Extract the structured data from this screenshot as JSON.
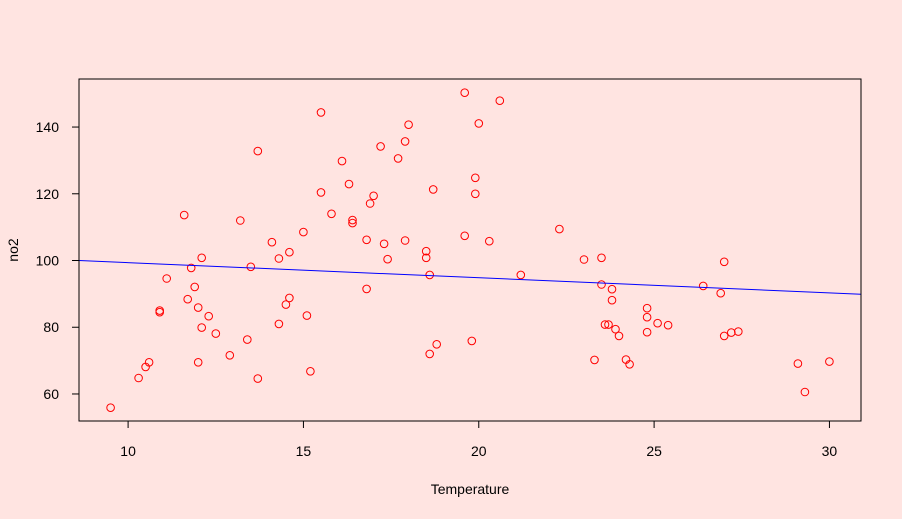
{
  "chart_data": {
    "type": "scatter",
    "title": "",
    "xlabel": "Temperature",
    "ylabel": "no2",
    "xlim": [
      8.6,
      30.9
    ],
    "ylim": [
      51.9,
      154.4
    ],
    "x_ticks": [
      10,
      15,
      20,
      25,
      30
    ],
    "y_ticks": [
      60,
      80,
      100,
      120,
      140
    ],
    "grid": false,
    "legend": "none",
    "colors": {
      "background": "#ffe4e1",
      "points": "#ff0000",
      "regression_line": "#0000ff",
      "axes": "#000000"
    },
    "series": [
      {
        "marker": "open-circle",
        "points": [
          [
            9.5,
            55.9
          ],
          [
            10.3,
            64.8
          ],
          [
            10.5,
            68.1
          ],
          [
            10.6,
            69.5
          ],
          [
            10.9,
            85.0
          ],
          [
            10.9,
            84.5
          ],
          [
            11.1,
            94.6
          ],
          [
            11.6,
            113.6
          ],
          [
            11.7,
            88.4
          ],
          [
            11.8,
            97.8
          ],
          [
            11.9,
            92.1
          ],
          [
            12.0,
            69.5
          ],
          [
            12.0,
            85.9
          ],
          [
            12.1,
            100.8
          ],
          [
            12.1,
            79.9
          ],
          [
            12.3,
            83.3
          ],
          [
            12.5,
            78.1
          ],
          [
            12.9,
            71.6
          ],
          [
            13.2,
            112.0
          ],
          [
            13.4,
            76.3
          ],
          [
            13.5,
            98.1
          ],
          [
            13.7,
            132.8
          ],
          [
            13.7,
            64.6
          ],
          [
            14.1,
            105.5
          ],
          [
            14.3,
            81.0
          ],
          [
            14.3,
            100.6
          ],
          [
            14.5,
            86.8
          ],
          [
            14.6,
            88.8
          ],
          [
            14.6,
            102.5
          ],
          [
            15.0,
            108.5
          ],
          [
            15.1,
            83.5
          ],
          [
            15.2,
            66.8
          ],
          [
            15.5,
            144.4
          ],
          [
            15.5,
            120.4
          ],
          [
            15.8,
            114.0
          ],
          [
            16.1,
            129.8
          ],
          [
            16.3,
            122.9
          ],
          [
            16.4,
            111.2
          ],
          [
            16.4,
            112.1
          ],
          [
            16.8,
            106.2
          ],
          [
            16.8,
            91.5
          ],
          [
            16.9,
            117.1
          ],
          [
            17.0,
            119.4
          ],
          [
            17.2,
            134.2
          ],
          [
            17.3,
            105.0
          ],
          [
            17.4,
            100.4
          ],
          [
            17.7,
            130.6
          ],
          [
            17.9,
            106.0
          ],
          [
            17.9,
            135.7
          ],
          [
            18.0,
            140.7
          ],
          [
            18.5,
            102.8
          ],
          [
            18.5,
            100.8
          ],
          [
            18.6,
            72.0
          ],
          [
            18.6,
            95.7
          ],
          [
            18.7,
            121.3
          ],
          [
            18.8,
            74.9
          ],
          [
            19.6,
            150.3
          ],
          [
            19.6,
            107.4
          ],
          [
            19.8,
            75.9
          ],
          [
            19.9,
            120.0
          ],
          [
            19.9,
            124.8
          ],
          [
            20.0,
            141.1
          ],
          [
            20.3,
            105.8
          ],
          [
            20.6,
            147.9
          ],
          [
            21.2,
            95.7
          ],
          [
            22.3,
            109.4
          ],
          [
            23.0,
            100.3
          ],
          [
            23.3,
            70.2
          ],
          [
            23.5,
            100.8
          ],
          [
            23.5,
            92.8
          ],
          [
            23.6,
            80.8
          ],
          [
            23.7,
            80.8
          ],
          [
            23.8,
            91.4
          ],
          [
            23.8,
            88.1
          ],
          [
            23.9,
            79.4
          ],
          [
            24.0,
            77.4
          ],
          [
            24.2,
            70.3
          ],
          [
            24.3,
            68.9
          ],
          [
            24.8,
            85.7
          ],
          [
            24.8,
            83.0
          ],
          [
            24.8,
            78.5
          ],
          [
            25.1,
            81.2
          ],
          [
            25.4,
            80.6
          ],
          [
            26.4,
            92.4
          ],
          [
            26.9,
            90.2
          ],
          [
            27.0,
            99.6
          ],
          [
            27.0,
            77.4
          ],
          [
            27.2,
            78.4
          ],
          [
            27.4,
            78.7
          ],
          [
            29.1,
            69.1
          ],
          [
            29.3,
            60.6
          ],
          [
            30.0,
            69.7
          ]
        ]
      }
    ],
    "regression_line": {
      "from": [
        8.6,
        100.0
      ],
      "to": [
        30.9,
        89.9
      ]
    }
  }
}
